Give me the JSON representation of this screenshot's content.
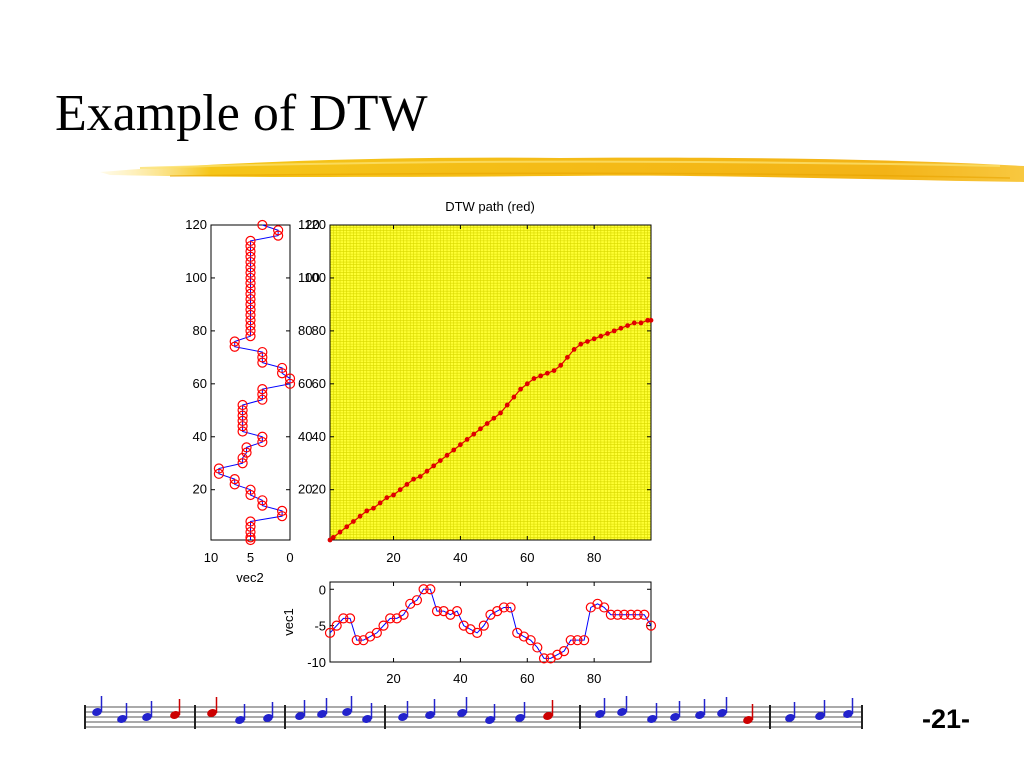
{
  "slide": {
    "title": "Example of DTW",
    "page_number": "-21-"
  },
  "colors": {
    "title_underline": "#f5c518",
    "matrix_background": "#ffff33",
    "path": "#e00000",
    "marker": "#ff0000",
    "series_line": "#0000ff"
  },
  "icons": [
    "brush-stroke-underline",
    "music-notes-strip"
  ],
  "chart_data": [
    {
      "type": "heatmap",
      "title": "DTW path (red)",
      "xlabel": "",
      "ylabel": "",
      "xlim": [
        1,
        97
      ],
      "ylim": [
        1,
        120
      ],
      "xticks": [
        20,
        40,
        60,
        80
      ],
      "yticks": [
        20,
        40,
        60,
        80,
        100,
        120
      ],
      "grid": true,
      "series": [
        {
          "x": [
            1,
            2,
            4,
            6,
            8,
            10,
            12,
            14,
            16,
            18,
            20,
            22,
            24,
            26,
            28,
            30,
            32,
            34,
            36,
            38,
            40,
            42,
            44,
            46,
            48,
            50,
            52,
            54,
            56,
            58,
            60,
            62,
            64,
            66,
            68,
            70,
            72,
            74,
            76,
            78,
            80,
            82,
            84,
            86,
            88,
            90,
            92,
            94,
            96,
            97
          ],
          "y": [
            1,
            2,
            4,
            6,
            8,
            10,
            12,
            13,
            15,
            17,
            18,
            20,
            22,
            24,
            25,
            27,
            29,
            31,
            33,
            35,
            37,
            39,
            41,
            43,
            45,
            47,
            49,
            52,
            55,
            58,
            60,
            62,
            63,
            64,
            65,
            67,
            70,
            73,
            75,
            76,
            77,
            78,
            79,
            80,
            81,
            82,
            83,
            83,
            84,
            84
          ]
        }
      ]
    },
    {
      "type": "line",
      "title": "",
      "xlabel": "vec2",
      "ylabel": "",
      "orientation": "vertical",
      "xlim": [
        10,
        0
      ],
      "ylim": [
        1,
        120
      ],
      "xticks": [
        10,
        5,
        0
      ],
      "yticks": [
        20,
        40,
        60,
        80,
        100,
        120
      ],
      "series": [
        {
          "index": [
            1,
            2,
            4,
            6,
            8,
            10,
            12,
            14,
            16,
            18,
            20,
            22,
            24,
            26,
            28,
            30,
            32,
            34,
            36,
            38,
            40,
            42,
            44,
            46,
            48,
            50,
            52,
            54,
            56,
            58,
            60,
            62,
            64,
            66,
            68,
            70,
            72,
            74,
            76,
            78,
            80,
            82,
            84,
            86,
            88,
            90,
            92,
            94,
            96,
            98,
            100,
            102,
            104,
            106,
            108,
            110,
            112,
            114,
            116,
            118,
            120
          ],
          "values": [
            5,
            5,
            5,
            5,
            5,
            1,
            1,
            3.5,
            3.5,
            5,
            5,
            7,
            7,
            9,
            9,
            6,
            6,
            5.5,
            5.5,
            3.5,
            3.5,
            6,
            6,
            6,
            6,
            6,
            6,
            3.5,
            3.5,
            3.5,
            0,
            0,
            1,
            1,
            3.5,
            3.5,
            3.5,
            7,
            7,
            5,
            5,
            5,
            5,
            5,
            5,
            5,
            5,
            5,
            5,
            5,
            5,
            5,
            5,
            5,
            5,
            5,
            5,
            5,
            1.5,
            1.5,
            3.5
          ]
        }
      ]
    },
    {
      "type": "line",
      "title": "",
      "xlabel": "",
      "ylabel": "vec1",
      "xlim": [
        1,
        97
      ],
      "ylim": [
        -10,
        1
      ],
      "xticks": [
        20,
        40,
        60,
        80
      ],
      "yticks": [
        0,
        -5,
        -10
      ],
      "series": [
        {
          "x": [
            1,
            3,
            5,
            7,
            9,
            11,
            13,
            15,
            17,
            19,
            21,
            23,
            25,
            27,
            29,
            31,
            33,
            35,
            37,
            39,
            41,
            43,
            45,
            47,
            49,
            51,
            53,
            55,
            57,
            59,
            61,
            63,
            65,
            67,
            69,
            71,
            73,
            75,
            77,
            79,
            81,
            83,
            85,
            87,
            89,
            91,
            93,
            95,
            97
          ],
          "values": [
            -6,
            -5,
            -4,
            -4,
            -7,
            -7,
            -6.5,
            -6,
            -5,
            -4,
            -4,
            -3.5,
            -2,
            -1.5,
            0,
            0,
            -3,
            -3,
            -3.5,
            -3,
            -5,
            -5.5,
            -6,
            -5,
            -3.5,
            -3,
            -2.5,
            -2.5,
            -6,
            -6.5,
            -7,
            -8,
            -9.5,
            -9.5,
            -9,
            -8.5,
            -7,
            -7,
            -7,
            -2.5,
            -2,
            -2.5,
            -3.5,
            -3.5,
            -3.5,
            -3.5,
            -3.5,
            -3.5,
            -5
          ]
        }
      ]
    }
  ]
}
